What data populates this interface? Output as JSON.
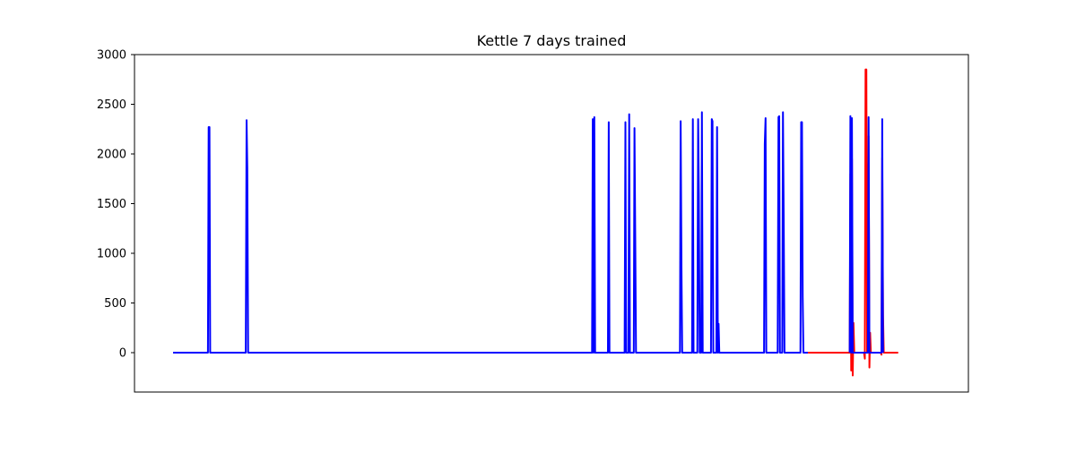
{
  "chart_data": {
    "type": "line",
    "title": "Kettle 7 days trained",
    "xlabel": "",
    "ylabel": "",
    "xlim": [
      0,
      1000
    ],
    "ylim": [
      -400,
      3000
    ],
    "yticks": [
      0,
      500,
      1000,
      1500,
      2000,
      2500,
      3000
    ],
    "grid": false,
    "legend": "none",
    "series": [
      {
        "color": "#0000ff",
        "points": [
          [
            0,
            0
          ],
          [
            46,
            0
          ],
          [
            47,
            2270
          ],
          [
            48,
            2270
          ],
          [
            49,
            0
          ],
          [
            96,
            0
          ],
          [
            97,
            2340
          ],
          [
            98,
            1860
          ],
          [
            99,
            0
          ],
          [
            553,
            0
          ],
          [
            554,
            2350
          ],
          [
            555,
            0
          ],
          [
            556,
            2370
          ],
          [
            557,
            0
          ],
          [
            574,
            0
          ],
          [
            575,
            2320
          ],
          [
            576,
            0
          ],
          [
            596,
            0
          ],
          [
            597,
            2320
          ],
          [
            598,
            0
          ],
          [
            601,
            0
          ],
          [
            602,
            2400
          ],
          [
            603,
            0
          ],
          [
            608,
            0
          ],
          [
            609,
            2260
          ],
          [
            610,
            1100
          ],
          [
            611,
            0
          ],
          [
            669,
            0
          ],
          [
            670,
            2330
          ],
          [
            671,
            860
          ],
          [
            672,
            0
          ],
          [
            685,
            0
          ],
          [
            686,
            2350
          ],
          [
            687,
            0
          ],
          [
            692,
            0
          ],
          [
            693,
            2350
          ],
          [
            694,
            1590
          ],
          [
            695,
            0
          ],
          [
            697,
            0
          ],
          [
            698,
            2420
          ],
          [
            699,
            0
          ],
          [
            710,
            0
          ],
          [
            711,
            2350
          ],
          [
            712,
            2330
          ],
          [
            713,
            0
          ],
          [
            717,
            0
          ],
          [
            718,
            2270
          ],
          [
            719,
            0
          ],
          [
            720,
            290
          ],
          [
            721,
            0
          ],
          [
            780,
            0
          ],
          [
            781,
            2100
          ],
          [
            782,
            2360
          ],
          [
            783,
            0
          ],
          [
            798,
            0
          ],
          [
            799,
            2370
          ],
          [
            800,
            2380
          ],
          [
            801,
            0
          ],
          [
            804,
            0
          ],
          [
            805,
            2420
          ],
          [
            806,
            1230
          ],
          [
            807,
            0
          ],
          [
            828,
            0
          ],
          [
            829,
            2320
          ],
          [
            830,
            2320
          ],
          [
            831,
            560
          ],
          [
            832,
            0
          ],
          [
            838,
            0
          ]
        ]
      },
      {
        "color": "#ff0000",
        "points": [
          [
            838,
            0
          ],
          [
            893,
            0
          ],
          [
            894,
            1800
          ],
          [
            895,
            -180
          ],
          [
            896,
            1950
          ],
          [
            897,
            -230
          ],
          [
            898,
            300
          ],
          [
            899,
            0
          ],
          [
            912,
            0
          ],
          [
            913,
            -60
          ],
          [
            914,
            2850
          ],
          [
            915,
            2850
          ],
          [
            916,
            0
          ],
          [
            918,
            2180
          ],
          [
            919,
            -150
          ],
          [
            920,
            200
          ],
          [
            921,
            0
          ],
          [
            934,
            0
          ],
          [
            935,
            -20
          ],
          [
            936,
            1960
          ],
          [
            937,
            380
          ],
          [
            938,
            0
          ],
          [
            957,
            0
          ]
        ]
      },
      {
        "color": "#0000ff",
        "points": [
          [
            893,
            0
          ],
          [
            894,
            2380
          ],
          [
            895,
            0
          ],
          [
            896,
            2360
          ],
          [
            897,
            0
          ],
          [
            917,
            0
          ],
          [
            918,
            2370
          ],
          [
            919,
            0
          ],
          [
            935,
            0
          ],
          [
            936,
            2350
          ],
          [
            937,
            0
          ]
        ]
      }
    ]
  }
}
